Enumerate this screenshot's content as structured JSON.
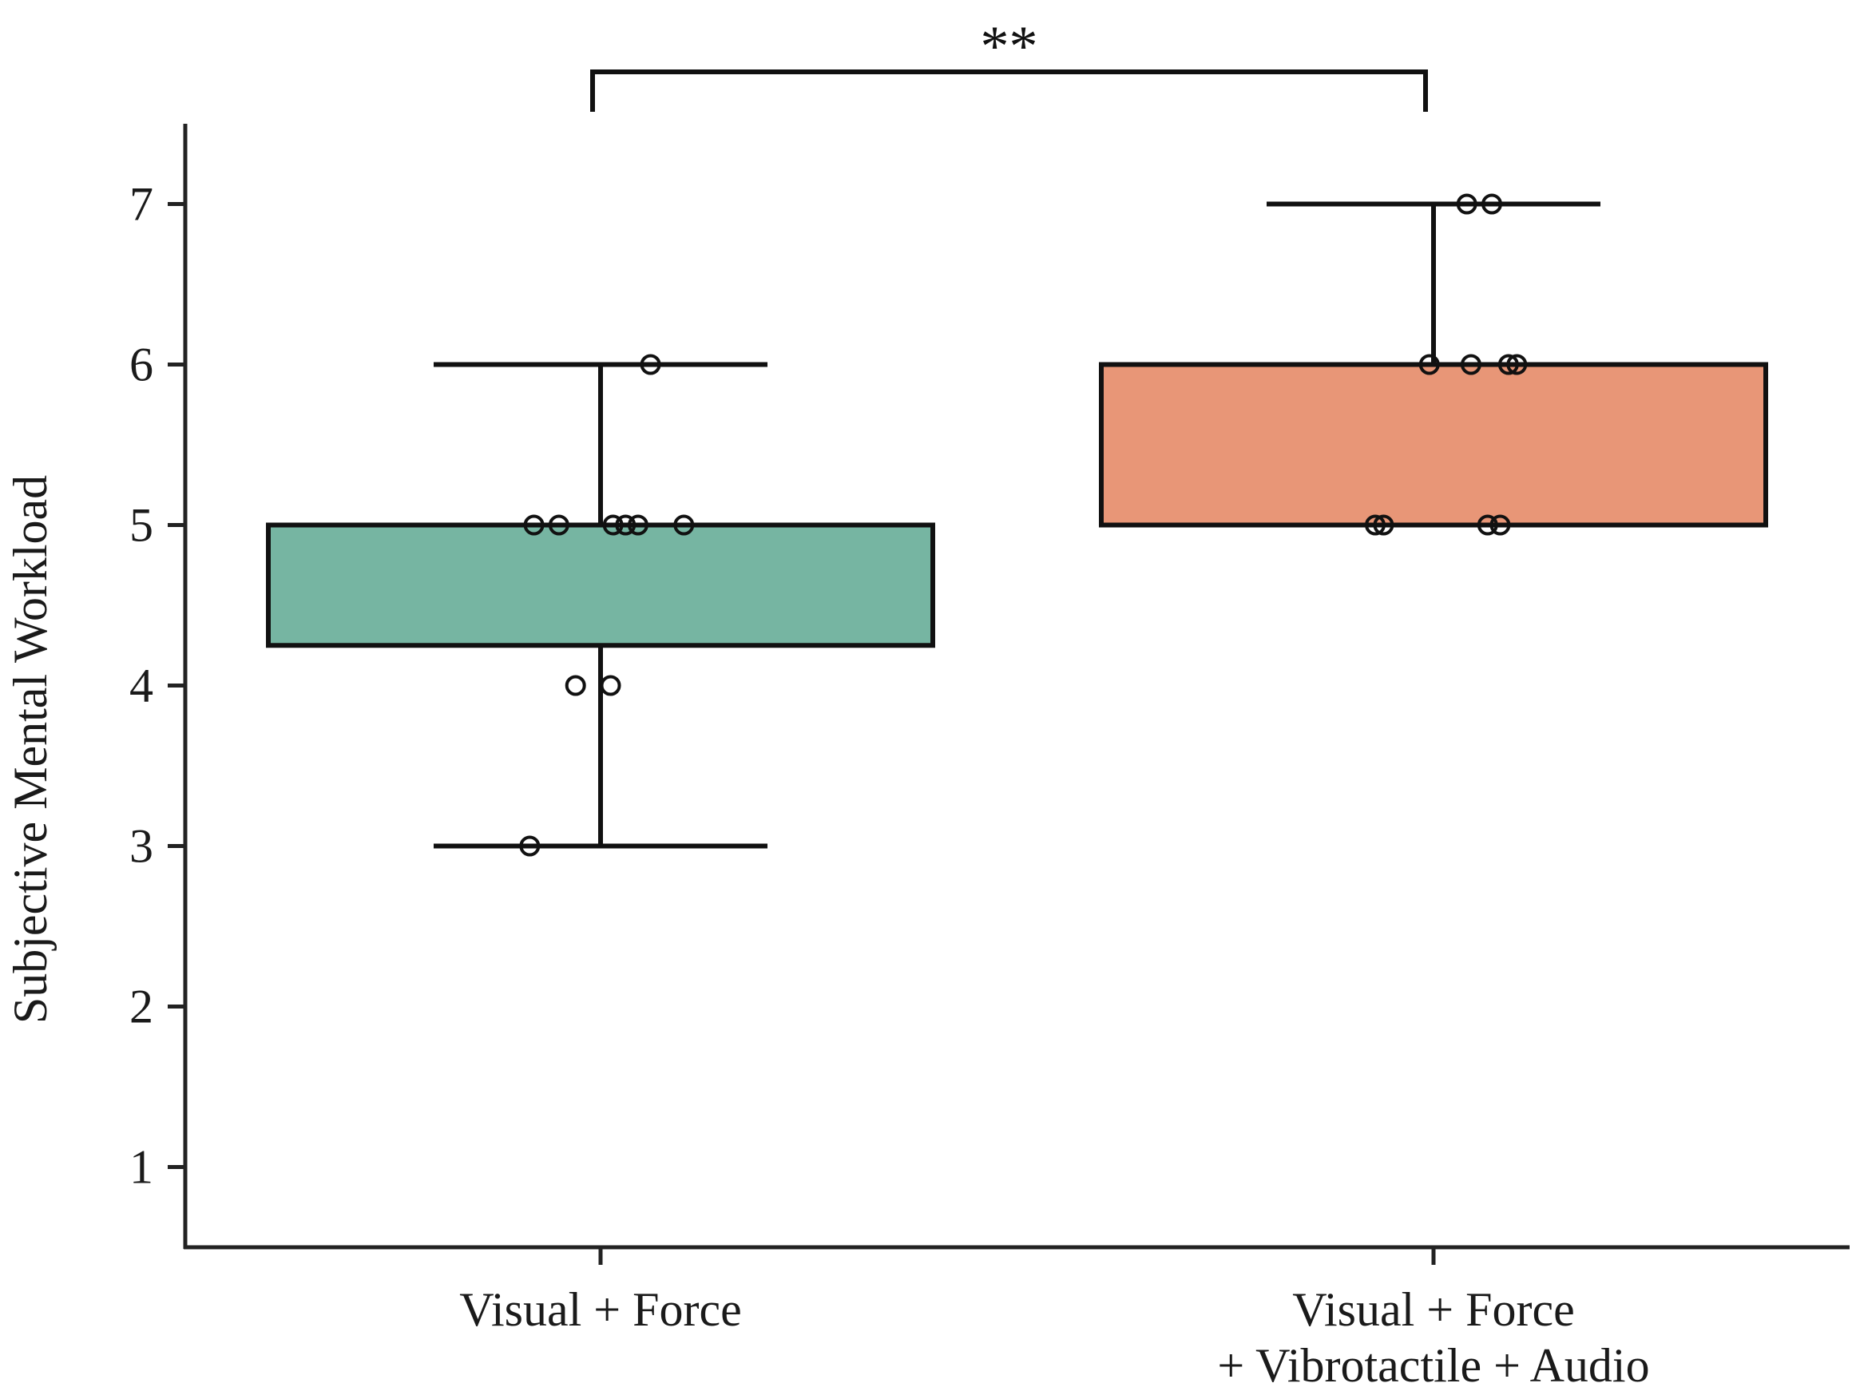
{
  "chart_data": {
    "type": "box",
    "ylabel": "Subjective Mental Workload",
    "ylim": [
      0.5,
      7.5
    ],
    "yticks": [
      1,
      2,
      3,
      4,
      5,
      6,
      7
    ],
    "categories": [
      [
        "Visual + Force"
      ],
      [
        "Visual + Force",
        "+ Vibrotactile + Audio"
      ]
    ],
    "boxes": [
      {
        "q1": 4.25,
        "q3": 5,
        "whisker_low": 3,
        "whisker_high": 6,
        "color": "#76b5a2"
      },
      {
        "q1": 5,
        "q3": 6,
        "whisker_low": 5,
        "whisker_high": 7,
        "color": "#e89677"
      }
    ],
    "points": [
      [
        {
          "y": 6,
          "jitter": 0.06
        },
        {
          "y": 5,
          "jitter": -0.08
        },
        {
          "y": 5,
          "jitter": -0.05
        },
        {
          "y": 5,
          "jitter": 0.015
        },
        {
          "y": 5,
          "jitter": 0.03
        },
        {
          "y": 5,
          "jitter": 0.045
        },
        {
          "y": 5,
          "jitter": 0.1
        },
        {
          "y": 4,
          "jitter": -0.03
        },
        {
          "y": 4,
          "jitter": 0.012
        },
        {
          "y": 3,
          "jitter": -0.085
        }
      ],
      [
        {
          "y": 7,
          "jitter": 0.04
        },
        {
          "y": 7,
          "jitter": 0.07
        },
        {
          "y": 6,
          "jitter": -0.005
        },
        {
          "y": 6,
          "jitter": 0.045
        },
        {
          "y": 6,
          "jitter": 0.09
        },
        {
          "y": 6,
          "jitter": 0.1
        },
        {
          "y": 5,
          "jitter": -0.07
        },
        {
          "y": 5,
          "jitter": -0.06
        },
        {
          "y": 5,
          "jitter": 0.065
        },
        {
          "y": 5,
          "jitter": 0.08
        }
      ]
    ],
    "significance": {
      "label": "**",
      "between": [
        0,
        1
      ]
    },
    "grid": false
  }
}
